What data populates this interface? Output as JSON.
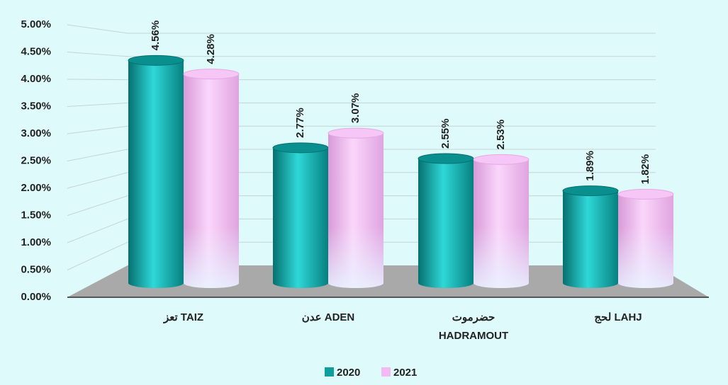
{
  "chart_data": {
    "type": "bar3d",
    "categories": [
      "تعز TAIZ",
      "عدن ADEN",
      "حضرموت HADRAMOUT",
      "لحج LAHJ"
    ],
    "series": [
      {
        "name": "2020",
        "color": "#0e9e9e",
        "values": [
          4.56,
          2.77,
          2.55,
          1.89
        ],
        "value_labels": [
          "4.56%",
          "2.77%",
          "2.55%",
          "1.89%"
        ]
      },
      {
        "name": "2021",
        "color": "#f3b9f3",
        "values": [
          4.28,
          3.07,
          2.53,
          1.82
        ],
        "value_labels": [
          "4.28%",
          "3.07%",
          "2.53%",
          "1.82%"
        ]
      }
    ],
    "ylim": [
      0,
      5
    ],
    "yticks": [
      {
        "value": 0,
        "label": "0.00%"
      },
      {
        "value": 0.5,
        "label": "0.50%"
      },
      {
        "value": 1,
        "label": "1.00%"
      },
      {
        "value": 1.5,
        "label": "1.50%"
      },
      {
        "value": 2,
        "label": "2.00%"
      },
      {
        "value": 2.5,
        "label": "2.50%"
      },
      {
        "value": 3,
        "label": "3.00%"
      },
      {
        "value": 3.5,
        "label": "3.50%"
      },
      {
        "value": 4,
        "label": "4.00%"
      },
      {
        "value": 4.5,
        "label": "4.50%"
      },
      {
        "value": 5,
        "label": "5.00%"
      }
    ],
    "grid": true,
    "legend": "bottom"
  }
}
